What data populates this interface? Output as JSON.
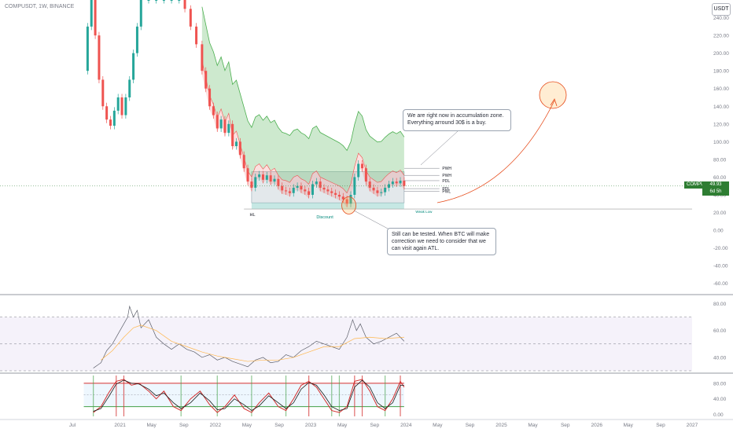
{
  "header": {
    "symbol_line": "COMPUSDT, 1W, BINANCE",
    "unit_button": "USDT"
  },
  "price_label": {
    "symbol": "COMPUSDT",
    "value": "49.93",
    "countdown": "6d 5h"
  },
  "annotations": {
    "top": "We are right now in accumulation zone. Everything arround 30$ is a buy.",
    "bottom": "Still can be tested. When BTC will make correction we need to consider that we can visit again ATL."
  },
  "chart_labels": {
    "hl": "HL",
    "discount": "Discount",
    "weak_low": "Weak Low",
    "levels": [
      "PWH",
      "PWH",
      "PDL",
      "PDL",
      "PWL"
    ]
  },
  "chart_data": [
    {
      "type": "line",
      "panel": "price",
      "ylim": [
        -70,
        260
      ],
      "yticks": [
        "240.00",
        "220.00",
        "200.00",
        "180.00",
        "160.00",
        "140.00",
        "120.00",
        "100.00",
        "80.00",
        "60.00",
        "40.00",
        "20.00",
        "0.00",
        "-20.00",
        "-40.00",
        "-60.00"
      ],
      "ytick_values": [
        240,
        220,
        200,
        180,
        160,
        140,
        120,
        100,
        80,
        60,
        40,
        20,
        0,
        -20,
        -40,
        -60
      ],
      "series": [
        {
          "values": [
            [
              2020.62,
              180
            ],
            [
              2020.66,
              230
            ],
            [
              2020.7,
              260
            ],
            [
              2020.74,
              220
            ],
            [
              2020.78,
              170
            ],
            [
              2020.82,
              140
            ],
            [
              2020.86,
              125
            ],
            [
              2020.9,
              118
            ],
            [
              2020.94,
              135
            ],
            [
              2020.98,
              150
            ],
            [
              2021.02,
              130
            ],
            [
              2021.06,
              150
            ],
            [
              2021.1,
              170
            ],
            [
              2021.14,
              200
            ],
            [
              2021.18,
              230
            ],
            [
              2021.22,
              260
            ],
            [
              2021.3,
              260
            ],
            [
              2021.38,
              260
            ],
            [
              2021.46,
              260
            ],
            [
              2021.54,
              260
            ],
            [
              2021.62,
              260
            ],
            [
              2021.68,
              250
            ],
            [
              2021.74,
              230
            ],
            [
              2021.8,
              210
            ],
            [
              2021.86,
              180
            ],
            [
              2021.9,
              160
            ],
            [
              2021.94,
              140
            ],
            [
              2021.98,
              130
            ],
            [
              2022.02,
              115
            ],
            [
              2022.06,
              125
            ],
            [
              2022.1,
              110
            ],
            [
              2022.14,
              120
            ],
            [
              2022.18,
              95
            ],
            [
              2022.22,
              100
            ],
            [
              2022.26,
              85
            ],
            [
              2022.3,
              70
            ],
            [
              2022.34,
              55
            ],
            [
              2022.38,
              48
            ],
            [
              2022.42,
              60
            ],
            [
              2022.46,
              63
            ],
            [
              2022.5,
              57
            ],
            [
              2022.54,
              62
            ],
            [
              2022.58,
              55
            ],
            [
              2022.62,
              58
            ],
            [
              2022.66,
              50
            ],
            [
              2022.7,
              45
            ],
            [
              2022.74,
              44
            ],
            [
              2022.78,
              42
            ],
            [
              2022.82,
              48
            ],
            [
              2022.86,
              50
            ],
            [
              2022.9,
              46
            ],
            [
              2022.94,
              44
            ],
            [
              2022.98,
              40
            ],
            [
              2023.02,
              52
            ],
            [
              2023.06,
              55
            ],
            [
              2023.1,
              48
            ],
            [
              2023.14,
              46
            ],
            [
              2023.18,
              44
            ],
            [
              2023.22,
              42
            ],
            [
              2023.26,
              40
            ],
            [
              2023.3,
              38
            ],
            [
              2023.34,
              35
            ],
            [
              2023.38,
              30
            ],
            [
              2023.42,
              40
            ],
            [
              2023.46,
              60
            ],
            [
              2023.5,
              75
            ],
            [
              2023.54,
              70
            ],
            [
              2023.58,
              55
            ],
            [
              2023.62,
              48
            ],
            [
              2023.66,
              45
            ],
            [
              2023.7,
              42
            ],
            [
              2023.74,
              43
            ],
            [
              2023.78,
              48
            ],
            [
              2023.82,
              52
            ],
            [
              2023.86,
              55
            ],
            [
              2023.9,
              53
            ],
            [
              2023.94,
              56
            ],
            [
              2023.98,
              50
            ]
          ]
        }
      ],
      "zones": {
        "range_high": 66,
        "range_low": 31,
        "weak_low": 24,
        "current_price": 49.93
      }
    },
    {
      "type": "line",
      "panel": "rsi",
      "ylim": [
        30,
        85
      ],
      "yticks": [
        "80.00",
        "60.00",
        "40.00"
      ],
      "ytick_values": [
        80,
        60,
        40
      ],
      "bands": [
        70,
        50,
        30
      ],
      "series": [
        {
          "values": [
            [
              2020.72,
              32
            ],
            [
              2020.8,
              36
            ],
            [
              2020.86,
              45
            ],
            [
              2020.92,
              50
            ],
            [
              2020.96,
              55
            ],
            [
              2021.0,
              60
            ],
            [
              2021.04,
              65
            ],
            [
              2021.08,
              70
            ],
            [
              2021.1,
              78
            ],
            [
              2021.14,
              70
            ],
            [
              2021.18,
              75
            ],
            [
              2021.22,
              62
            ],
            [
              2021.3,
              68
            ],
            [
              2021.38,
              55
            ],
            [
              2021.46,
              50
            ],
            [
              2021.54,
              46
            ],
            [
              2021.62,
              50
            ],
            [
              2021.7,
              46
            ],
            [
              2021.78,
              44
            ],
            [
              2021.86,
              40
            ],
            [
              2021.94,
              42
            ],
            [
              2022.02,
              38
            ],
            [
              2022.1,
              40
            ],
            [
              2022.18,
              37
            ],
            [
              2022.26,
              35
            ],
            [
              2022.34,
              33
            ],
            [
              2022.42,
              38
            ],
            [
              2022.5,
              40
            ],
            [
              2022.58,
              36
            ],
            [
              2022.66,
              37
            ],
            [
              2022.74,
              42
            ],
            [
              2022.82,
              40
            ],
            [
              2022.9,
              45
            ],
            [
              2022.98,
              48
            ],
            [
              2023.06,
              52
            ],
            [
              2023.14,
              50
            ],
            [
              2023.22,
              48
            ],
            [
              2023.3,
              46
            ],
            [
              2023.38,
              55
            ],
            [
              2023.44,
              68
            ],
            [
              2023.48,
              60
            ],
            [
              2023.52,
              65
            ],
            [
              2023.58,
              55
            ],
            [
              2023.66,
              50
            ],
            [
              2023.74,
              52
            ],
            [
              2023.82,
              55
            ],
            [
              2023.9,
              58
            ],
            [
              2023.98,
              52
            ]
          ]
        },
        {
          "values": [
            [
              2020.8,
              38
            ],
            [
              2020.92,
              45
            ],
            [
              2021.04,
              55
            ],
            [
              2021.14,
              62
            ],
            [
              2021.22,
              64
            ],
            [
              2021.38,
              60
            ],
            [
              2021.54,
              52
            ],
            [
              2021.7,
              48
            ],
            [
              2021.86,
              44
            ],
            [
              2022.02,
              41
            ],
            [
              2022.18,
              39
            ],
            [
              2022.34,
              37
            ],
            [
              2022.5,
              38
            ],
            [
              2022.66,
              38
            ],
            [
              2022.82,
              40
            ],
            [
              2022.98,
              44
            ],
            [
              2023.14,
              48
            ],
            [
              2023.3,
              48
            ],
            [
              2023.46,
              54
            ],
            [
              2023.62,
              55
            ],
            [
              2023.78,
              54
            ],
            [
              2023.98,
              55
            ]
          ]
        }
      ]
    },
    {
      "type": "line",
      "panel": "stoch",
      "ylim": [
        -5,
        100
      ],
      "yticks": [
        "80.00",
        "40.00",
        "0.00"
      ],
      "ytick_values": [
        80,
        40,
        0
      ],
      "bands": [
        80,
        50,
        20
      ],
      "series": [
        {
          "values": [
            [
              2020.72,
              5
            ],
            [
              2020.8,
              20
            ],
            [
              2020.88,
              55
            ],
            [
              2020.96,
              85
            ],
            [
              2021.04,
              90
            ],
            [
              2021.12,
              75
            ],
            [
              2021.2,
              80
            ],
            [
              2021.3,
              60
            ],
            [
              2021.38,
              40
            ],
            [
              2021.46,
              60
            ],
            [
              2021.56,
              20
            ],
            [
              2021.64,
              10
            ],
            [
              2021.74,
              40
            ],
            [
              2021.84,
              60
            ],
            [
              2021.94,
              25
            ],
            [
              2022.02,
              5
            ],
            [
              2022.1,
              20
            ],
            [
              2022.2,
              50
            ],
            [
              2022.3,
              15
            ],
            [
              2022.38,
              5
            ],
            [
              2022.46,
              30
            ],
            [
              2022.56,
              55
            ],
            [
              2022.66,
              20
            ],
            [
              2022.74,
              10
            ],
            [
              2022.82,
              40
            ],
            [
              2022.9,
              75
            ],
            [
              2022.98,
              85
            ],
            [
              2023.06,
              70
            ],
            [
              2023.14,
              40
            ],
            [
              2023.22,
              10
            ],
            [
              2023.3,
              5
            ],
            [
              2023.38,
              20
            ],
            [
              2023.46,
              85
            ],
            [
              2023.54,
              90
            ],
            [
              2023.62,
              60
            ],
            [
              2023.7,
              20
            ],
            [
              2023.78,
              10
            ],
            [
              2023.86,
              40
            ],
            [
              2023.94,
              85
            ],
            [
              2023.98,
              70
            ]
          ]
        },
        {
          "values": [
            [
              2020.72,
              8
            ],
            [
              2020.8,
              15
            ],
            [
              2020.88,
              45
            ],
            [
              2020.96,
              78
            ],
            [
              2021.04,
              88
            ],
            [
              2021.12,
              80
            ],
            [
              2021.2,
              78
            ],
            [
              2021.3,
              65
            ],
            [
              2021.38,
              48
            ],
            [
              2021.46,
              55
            ],
            [
              2021.56,
              30
            ],
            [
              2021.64,
              15
            ],
            [
              2021.74,
              30
            ],
            [
              2021.84,
              55
            ],
            [
              2021.94,
              35
            ],
            [
              2022.02,
              12
            ],
            [
              2022.1,
              15
            ],
            [
              2022.2,
              40
            ],
            [
              2022.3,
              25
            ],
            [
              2022.38,
              10
            ],
            [
              2022.46,
              22
            ],
            [
              2022.56,
              48
            ],
            [
              2022.66,
              30
            ],
            [
              2022.74,
              15
            ],
            [
              2022.82,
              30
            ],
            [
              2022.9,
              65
            ],
            [
              2022.98,
              82
            ],
            [
              2023.06,
              75
            ],
            [
              2023.14,
              50
            ],
            [
              2023.22,
              20
            ],
            [
              2023.3,
              10
            ],
            [
              2023.38,
              15
            ],
            [
              2023.46,
              70
            ],
            [
              2023.54,
              88
            ],
            [
              2023.62,
              70
            ],
            [
              2023.7,
              30
            ],
            [
              2023.78,
              15
            ],
            [
              2023.86,
              30
            ],
            [
              2023.94,
              75
            ],
            [
              2023.98,
              75
            ]
          ]
        }
      ]
    }
  ],
  "x_axis": {
    "labels": [
      "Jul",
      "2021",
      "May",
      "Sep",
      "2022",
      "May",
      "Sep",
      "2023",
      "May",
      "Sep",
      "2024",
      "May",
      "Sep",
      "2025",
      "May",
      "Sep",
      "2026",
      "May",
      "Sep",
      "2027"
    ],
    "values": [
      2020.5,
      2021.0,
      2021.33,
      2021.67,
      2022.0,
      2022.33,
      2022.67,
      2023.0,
      2023.33,
      2023.67,
      2024.0,
      2024.33,
      2024.67,
      2025.0,
      2025.33,
      2025.67,
      2026.0,
      2026.33,
      2026.67,
      2027.0
    ]
  },
  "colors": {
    "up": "#26a69a",
    "down": "#ef5350",
    "rsi": "#7e57c2",
    "stoch_k": "#d32f2f",
    "stoch_d": "#1b1b1b",
    "cloud_green": "#4caf50",
    "cloud_red": "#ef5350"
  }
}
